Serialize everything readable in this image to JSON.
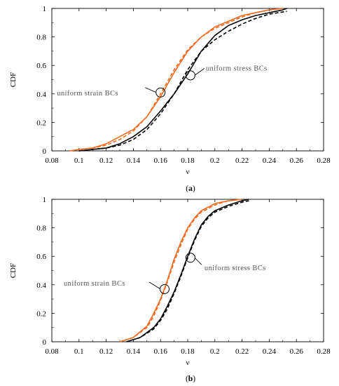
{
  "chart_data": [
    {
      "type": "line",
      "panel": "a",
      "caption": "(a)",
      "caption_letter": "a",
      "xlabel": "ν",
      "ylabel": "CDF",
      "xlim": [
        0.08,
        0.28
      ],
      "ylim": [
        0,
        1
      ],
      "xticks": [
        "0.08",
        "0.1",
        "0.12",
        "0.14",
        "0.16",
        "0.18",
        "0.2",
        "0.22",
        "0.24",
        "0.26",
        "0.28"
      ],
      "yticks": [
        "0",
        "0.2",
        "0.4",
        "0.6",
        "0.8",
        "1"
      ],
      "grid": false,
      "annotations": [
        {
          "text": "uniform strain BCs",
          "x": 0.16,
          "y": 0.41
        },
        {
          "text": "uniform stress BCs",
          "x": 0.182,
          "y": 0.53
        }
      ],
      "series": [
        {
          "style": "solid",
          "color": "#F26B21",
          "x": [
            0.093,
            0.1,
            0.11,
            0.12,
            0.13,
            0.14,
            0.15,
            0.16,
            0.17,
            0.18,
            0.19,
            0.2,
            0.21,
            0.22,
            0.23,
            0.24,
            0.25
          ],
          "y": [
            0.0,
            0.01,
            0.02,
            0.05,
            0.1,
            0.15,
            0.24,
            0.38,
            0.55,
            0.7,
            0.8,
            0.87,
            0.91,
            0.95,
            0.97,
            0.99,
            1.0
          ]
        },
        {
          "style": "dashed",
          "color": "#F26B21",
          "x": [
            0.093,
            0.1,
            0.11,
            0.12,
            0.13,
            0.14,
            0.15,
            0.16,
            0.17,
            0.18,
            0.19,
            0.2,
            0.21,
            0.22,
            0.23,
            0.24,
            0.25
          ],
          "y": [
            0.0,
            0.01,
            0.02,
            0.04,
            0.08,
            0.14,
            0.24,
            0.4,
            0.57,
            0.71,
            0.8,
            0.86,
            0.9,
            0.94,
            0.97,
            0.99,
            1.0
          ]
        },
        {
          "style": "solid",
          "color": "#000000",
          "x": [
            0.1,
            0.11,
            0.12,
            0.13,
            0.14,
            0.15,
            0.16,
            0.17,
            0.18,
            0.19,
            0.2,
            0.21,
            0.22,
            0.23,
            0.24,
            0.25,
            0.253
          ],
          "y": [
            0.0,
            0.01,
            0.02,
            0.05,
            0.1,
            0.17,
            0.28,
            0.4,
            0.54,
            0.7,
            0.81,
            0.88,
            0.92,
            0.95,
            0.97,
            0.99,
            1.0
          ]
        },
        {
          "style": "dashed",
          "color": "#000000",
          "x": [
            0.1,
            0.11,
            0.12,
            0.13,
            0.14,
            0.15,
            0.16,
            0.17,
            0.18,
            0.19,
            0.2,
            0.21,
            0.22,
            0.23,
            0.24,
            0.25,
            0.253
          ],
          "y": [
            0.0,
            0.01,
            0.02,
            0.04,
            0.08,
            0.15,
            0.26,
            0.4,
            0.57,
            0.7,
            0.78,
            0.84,
            0.89,
            0.93,
            0.96,
            0.975,
            0.98
          ]
        }
      ]
    },
    {
      "type": "line",
      "panel": "b",
      "caption": "(b)",
      "caption_letter": "b",
      "xlabel": "ν",
      "ylabel": "CDF",
      "xlim": [
        0.08,
        0.28
      ],
      "ylim": [
        0,
        1
      ],
      "xticks": [
        "0.08",
        "0.1",
        "0.12",
        "0.14",
        "0.16",
        "0.18",
        "0.2",
        "0.22",
        "0.24",
        "0.26",
        "0.28"
      ],
      "yticks": [
        "0",
        "0.2",
        "0.4",
        "0.6",
        "0.8",
        "1"
      ],
      "grid": false,
      "annotations": [
        {
          "text": "uniform strain BCs",
          "x": 0.163,
          "y": 0.37
        },
        {
          "text": "uniform stress BCs",
          "x": 0.182,
          "y": 0.59
        }
      ],
      "series": [
        {
          "style": "solid",
          "color": "#F26B21",
          "x": [
            0.13,
            0.14,
            0.15,
            0.155,
            0.16,
            0.165,
            0.17,
            0.175,
            0.18,
            0.185,
            0.19,
            0.2,
            0.21,
            0.22
          ],
          "y": [
            0.0,
            0.03,
            0.11,
            0.2,
            0.3,
            0.43,
            0.58,
            0.7,
            0.8,
            0.87,
            0.92,
            0.97,
            0.99,
            1.0
          ]
        },
        {
          "style": "dashed",
          "color": "#F26B21",
          "x": [
            0.13,
            0.14,
            0.15,
            0.155,
            0.16,
            0.165,
            0.17,
            0.175,
            0.18,
            0.185,
            0.19,
            0.2,
            0.21,
            0.22
          ],
          "y": [
            0.0,
            0.03,
            0.1,
            0.18,
            0.29,
            0.42,
            0.56,
            0.68,
            0.79,
            0.86,
            0.91,
            0.96,
            0.99,
            1.0
          ]
        },
        {
          "style": "solid",
          "color": "#000000",
          "x": [
            0.135,
            0.145,
            0.155,
            0.16,
            0.165,
            0.17,
            0.175,
            0.18,
            0.185,
            0.19,
            0.195,
            0.2,
            0.21,
            0.22,
            0.225
          ],
          "y": [
            0.0,
            0.03,
            0.1,
            0.16,
            0.25,
            0.35,
            0.47,
            0.6,
            0.72,
            0.82,
            0.88,
            0.92,
            0.96,
            0.99,
            1.0
          ]
        },
        {
          "style": "dashed",
          "color": "#000000",
          "x": [
            0.135,
            0.145,
            0.155,
            0.16,
            0.165,
            0.17,
            0.175,
            0.18,
            0.185,
            0.19,
            0.195,
            0.2,
            0.21,
            0.22,
            0.225
          ],
          "y": [
            0.0,
            0.03,
            0.09,
            0.15,
            0.23,
            0.34,
            0.46,
            0.59,
            0.71,
            0.81,
            0.87,
            0.91,
            0.95,
            0.98,
            0.99
          ]
        }
      ]
    }
  ]
}
